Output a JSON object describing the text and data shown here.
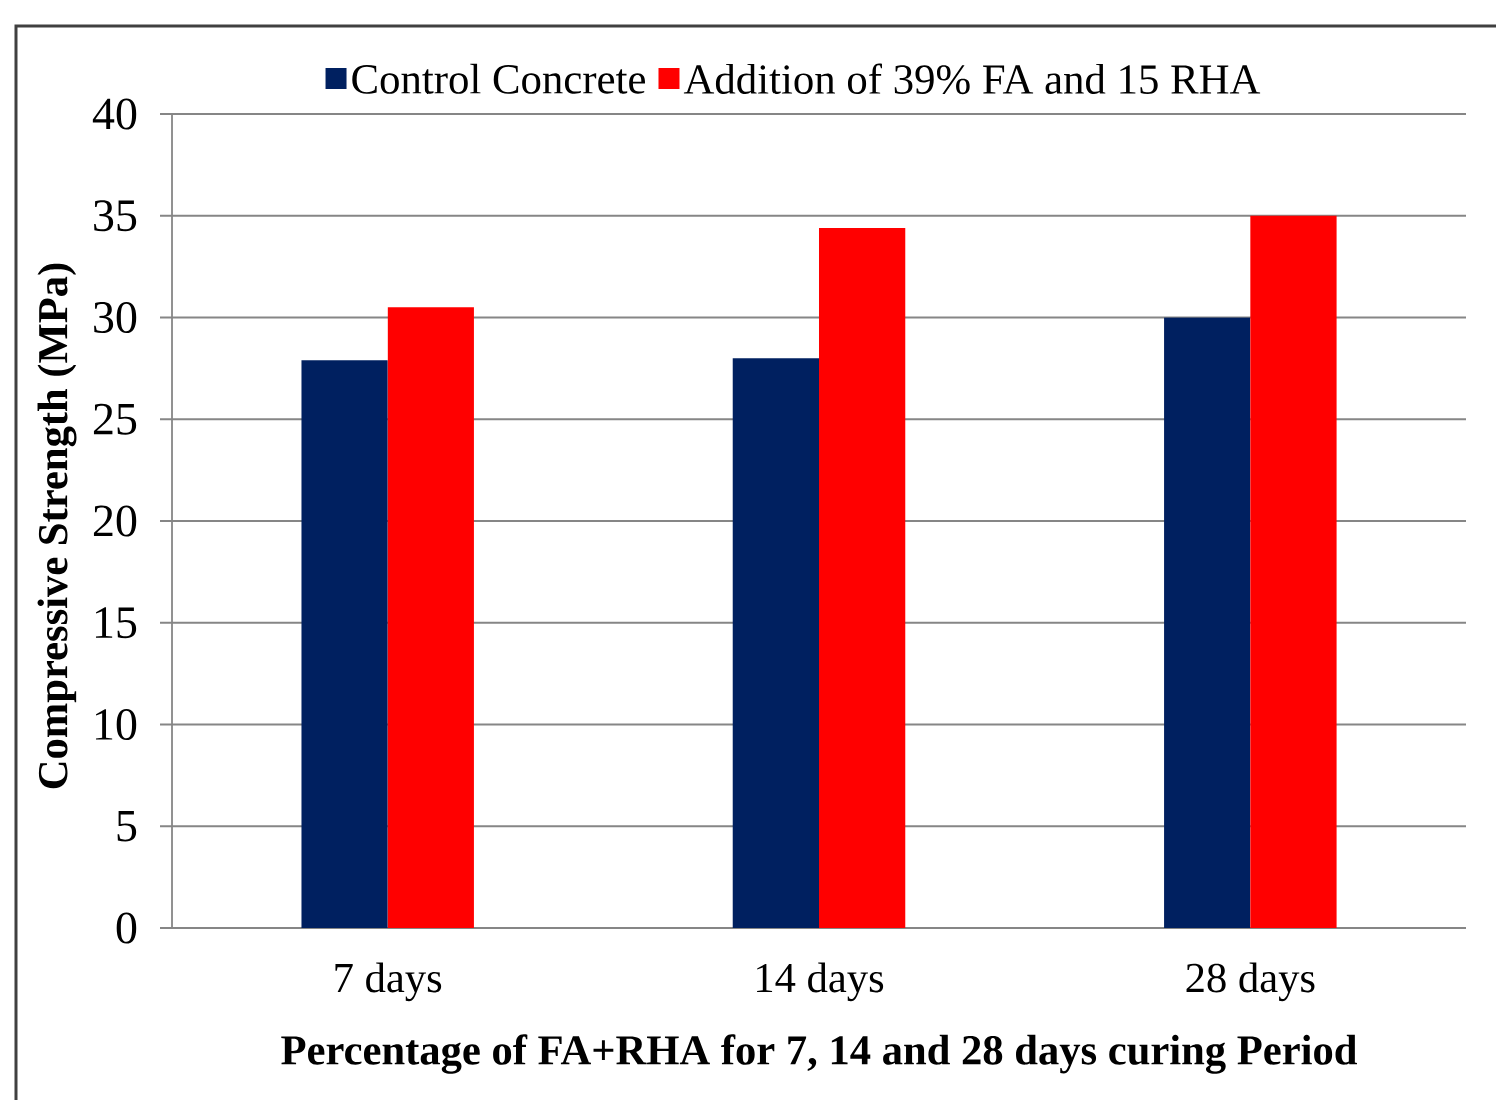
{
  "chart_data": {
    "type": "bar",
    "categories": [
      "7 days",
      "14 days",
      "28 days"
    ],
    "series": [
      {
        "name": "Control Concrete",
        "color": "#002060",
        "values": [
          27.9,
          28.0,
          30.0
        ]
      },
      {
        "name": "Addition of 39% FA and 15 RHA",
        "color": "#ff0000",
        "values": [
          30.5,
          34.4,
          35.0
        ]
      }
    ],
    "xlabel": "Percentage of FA+RHA for 7, 14 and 28 days curing Period",
    "ylabel": "Compressive Strength (MPa)",
    "ylim": [
      0,
      40
    ],
    "yticks": [
      0,
      5,
      10,
      15,
      20,
      25,
      30,
      35,
      40
    ],
    "grid": "y",
    "legend": "top"
  }
}
